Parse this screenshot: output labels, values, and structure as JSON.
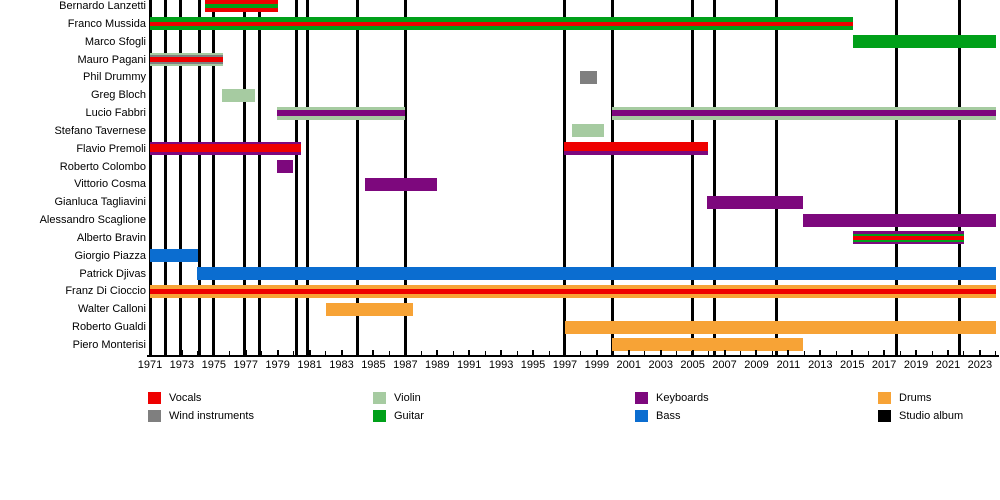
{
  "chart_data": {
    "type": "gantt-timeline",
    "description": "Band membership timeline by instrument with studio album markers",
    "x_axis": {
      "min": 1971,
      "max": 2024,
      "tick_step": 1,
      "label_step": 2,
      "labels": [
        1971,
        1973,
        1975,
        1977,
        1979,
        1981,
        1983,
        1985,
        1987,
        1989,
        1991,
        1993,
        1995,
        1997,
        1999,
        2001,
        2003,
        2005,
        2007,
        2009,
        2011,
        2013,
        2015,
        2017,
        2019,
        2021,
        2023
      ]
    },
    "colors": {
      "vocals": "#EE0000",
      "wind": "#7F7F7F",
      "violin": "#A6CBA1",
      "guitar": "#00A019",
      "keyboards": "#7D087D",
      "bass": "#0B6DD0",
      "drums": "#F7A336",
      "album": "#000000"
    },
    "rows": [
      {
        "name": "Bernardo Lanzetti",
        "bars": [
          {
            "start": 1974.45,
            "end": 1979.0,
            "stripes": [
              [
                "vocals",
                4
              ],
              [
                "guitar",
                4
              ],
              [
                "vocals",
                4
              ]
            ]
          }
        ]
      },
      {
        "name": "Franco Mussida",
        "bars": [
          {
            "start": 1971.0,
            "end": 2015.05,
            "stripes": [
              [
                "guitar",
                4
              ],
              [
                "vocals",
                4
              ],
              [
                "guitar",
                4
              ]
            ]
          }
        ]
      },
      {
        "name": "Marco Sfogli",
        "bars": [
          {
            "start": 2015.05,
            "end": 2024.0,
            "stripes": [
              [
                "guitar",
                1
              ]
            ]
          }
        ]
      },
      {
        "name": "Mauro Pagani",
        "bars": [
          {
            "start": 1971.0,
            "end": 1975.55,
            "stripes": [
              [
                "violin",
                2
              ],
              [
                "wind",
                2
              ],
              [
                "vocals",
                4
              ],
              [
                "wind",
                2
              ],
              [
                "violin",
                2
              ]
            ]
          }
        ]
      },
      {
        "name": "Phil Drummy",
        "bars": [
          {
            "start": 1997.95,
            "end": 1999.0,
            "stripes": [
              [
                "wind",
                1
              ]
            ]
          }
        ]
      },
      {
        "name": "Greg Bloch",
        "bars": [
          {
            "start": 1975.5,
            "end": 1977.6,
            "stripes": [
              [
                "violin",
                1
              ]
            ]
          }
        ]
      },
      {
        "name": "Lucio Fabbri",
        "bars": [
          {
            "start": 1978.95,
            "end": 1987.0,
            "stripes": [
              [
                "violin",
                3
              ],
              [
                "keyboards",
                6
              ],
              [
                "violin",
                3
              ]
            ]
          },
          {
            "start": 1999.95,
            "end": 2024.0,
            "stripes": [
              [
                "violin",
                3
              ],
              [
                "keyboards",
                6
              ],
              [
                "violin",
                3
              ]
            ]
          }
        ]
      },
      {
        "name": "Stefano Tavernese",
        "bars": [
          {
            "start": 1997.45,
            "end": 1999.45,
            "stripes": [
              [
                "violin",
                1
              ]
            ]
          }
        ]
      },
      {
        "name": "Flavio Premoli",
        "bars": [
          {
            "start": 1971.0,
            "end": 1980.45,
            "stripes": [
              [
                "keyboards",
                2
              ],
              [
                "vocals",
                7
              ],
              [
                "keyboards",
                3
              ]
            ]
          },
          {
            "start": 1996.95,
            "end": 2005.95,
            "stripes": [
              [
                "vocals",
                8
              ],
              [
                "keyboards",
                4
              ]
            ]
          }
        ]
      },
      {
        "name": "Roberto Colombo",
        "bars": [
          {
            "start": 1978.95,
            "end": 1979.95,
            "stripes": [
              [
                "keyboards",
                1
              ]
            ]
          }
        ]
      },
      {
        "name": "Vittorio Cosma",
        "bars": [
          {
            "start": 1984.45,
            "end": 1989.0,
            "stripes": [
              [
                "keyboards",
                1
              ]
            ]
          }
        ]
      },
      {
        "name": "Gianluca Tagliavini",
        "bars": [
          {
            "start": 2005.9,
            "end": 2011.9,
            "stripes": [
              [
                "keyboards",
                1
              ]
            ]
          }
        ]
      },
      {
        "name": "Alessandro Scaglione",
        "bars": [
          {
            "start": 2011.9,
            "end": 2024.0,
            "stripes": [
              [
                "keyboards",
                1
              ]
            ]
          }
        ]
      },
      {
        "name": "Alberto Bravin",
        "bars": [
          {
            "start": 2015.05,
            "end": 2022.0,
            "stripes": [
              [
                "keyboards",
                2
              ],
              [
                "guitar",
                2
              ],
              [
                "vocals",
                4
              ],
              [
                "guitar",
                2
              ],
              [
                "keyboards",
                2
              ]
            ]
          }
        ]
      },
      {
        "name": "Giorgio Piazza",
        "bars": [
          {
            "start": 1971.0,
            "end": 1974.0,
            "stripes": [
              [
                "bass",
                1
              ]
            ]
          }
        ]
      },
      {
        "name": "Patrick Djivas",
        "bars": [
          {
            "start": 1973.95,
            "end": 2024.0,
            "stripes": [
              [
                "bass",
                1
              ]
            ]
          }
        ]
      },
      {
        "name": "Franz Di Cioccio",
        "bars": [
          {
            "start": 1971.0,
            "end": 2024.0,
            "stripes": [
              [
                "drums",
                7
              ],
              [
                "vocals",
                10
              ],
              [
                "drums",
                7
              ]
            ]
          }
        ]
      },
      {
        "name": "Walter Calloni",
        "bars": [
          {
            "start": 1982.0,
            "end": 1987.5,
            "stripes": [
              [
                "drums",
                1
              ]
            ]
          }
        ]
      },
      {
        "name": "Roberto Gualdi",
        "bars": [
          {
            "start": 1997.0,
            "end": 2024.0,
            "stripes": [
              [
                "drums",
                1
              ]
            ]
          }
        ]
      },
      {
        "name": "Piero Monterisi",
        "bars": [
          {
            "start": 1999.95,
            "end": 2011.9,
            "stripes": [
              [
                "drums",
                1
              ]
            ]
          }
        ]
      }
    ],
    "album_markers": [
      1971.06,
      1972.0,
      1972.88,
      1974.13,
      1974.95,
      1976.95,
      1977.83,
      1980.21,
      1980.84,
      1983.97,
      1986.98,
      1997.0,
      1999.95,
      2004.96,
      2006.4,
      2010.28,
      2017.8,
      2021.69
    ],
    "legend": {
      "items": [
        {
          "label": "Vocals",
          "color": "vocals"
        },
        {
          "label": "Wind instruments",
          "color": "wind"
        },
        {
          "label": "Violin",
          "color": "violin"
        },
        {
          "label": "Guitar",
          "color": "guitar"
        },
        {
          "label": "Keyboards",
          "color": "keyboards"
        },
        {
          "label": "Bass",
          "color": "bass"
        },
        {
          "label": "Drums",
          "color": "drums"
        },
        {
          "label": "Studio album",
          "color": "album"
        }
      ]
    }
  }
}
